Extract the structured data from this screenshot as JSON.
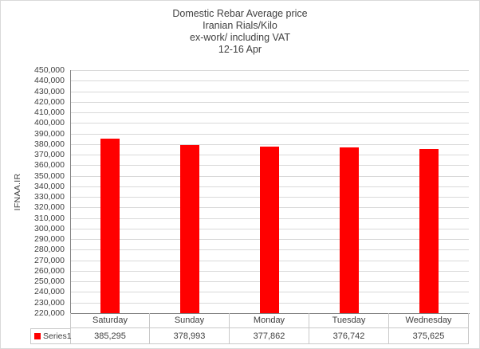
{
  "title": {
    "lines": [
      "Domestic Rebar Average  price",
      "Iranian Rials/Kilo",
      "ex-work/ including VAT",
      "12-16 Apr"
    ]
  },
  "chart_data": {
    "type": "bar",
    "title": "Domestic Rebar Average  price / Iranian Rials/Kilo / ex-work/ including VAT / 12-16 Apr",
    "categories": [
      "Saturday",
      "Sunday",
      "Monday",
      "Tuesday",
      "Wednesday"
    ],
    "series": [
      {
        "name": "Series1",
        "values": [
          385295,
          378993,
          377862,
          376742,
          375625
        ]
      }
    ],
    "xlabel": "",
    "ylabel": "IFNAA.IR",
    "ylim": [
      220000,
      450000
    ],
    "ytick_step": 10000,
    "grid": true,
    "legend_position": "data-table-left",
    "data_table": true
  },
  "colors": {
    "bar": "#ff0000",
    "gridline": "#d9d9d9",
    "axis_line": "#808080",
    "table_border": "#c9c9c9",
    "text": "#404040",
    "frame_border": "#d9d9d9",
    "background": "#ffffff"
  }
}
